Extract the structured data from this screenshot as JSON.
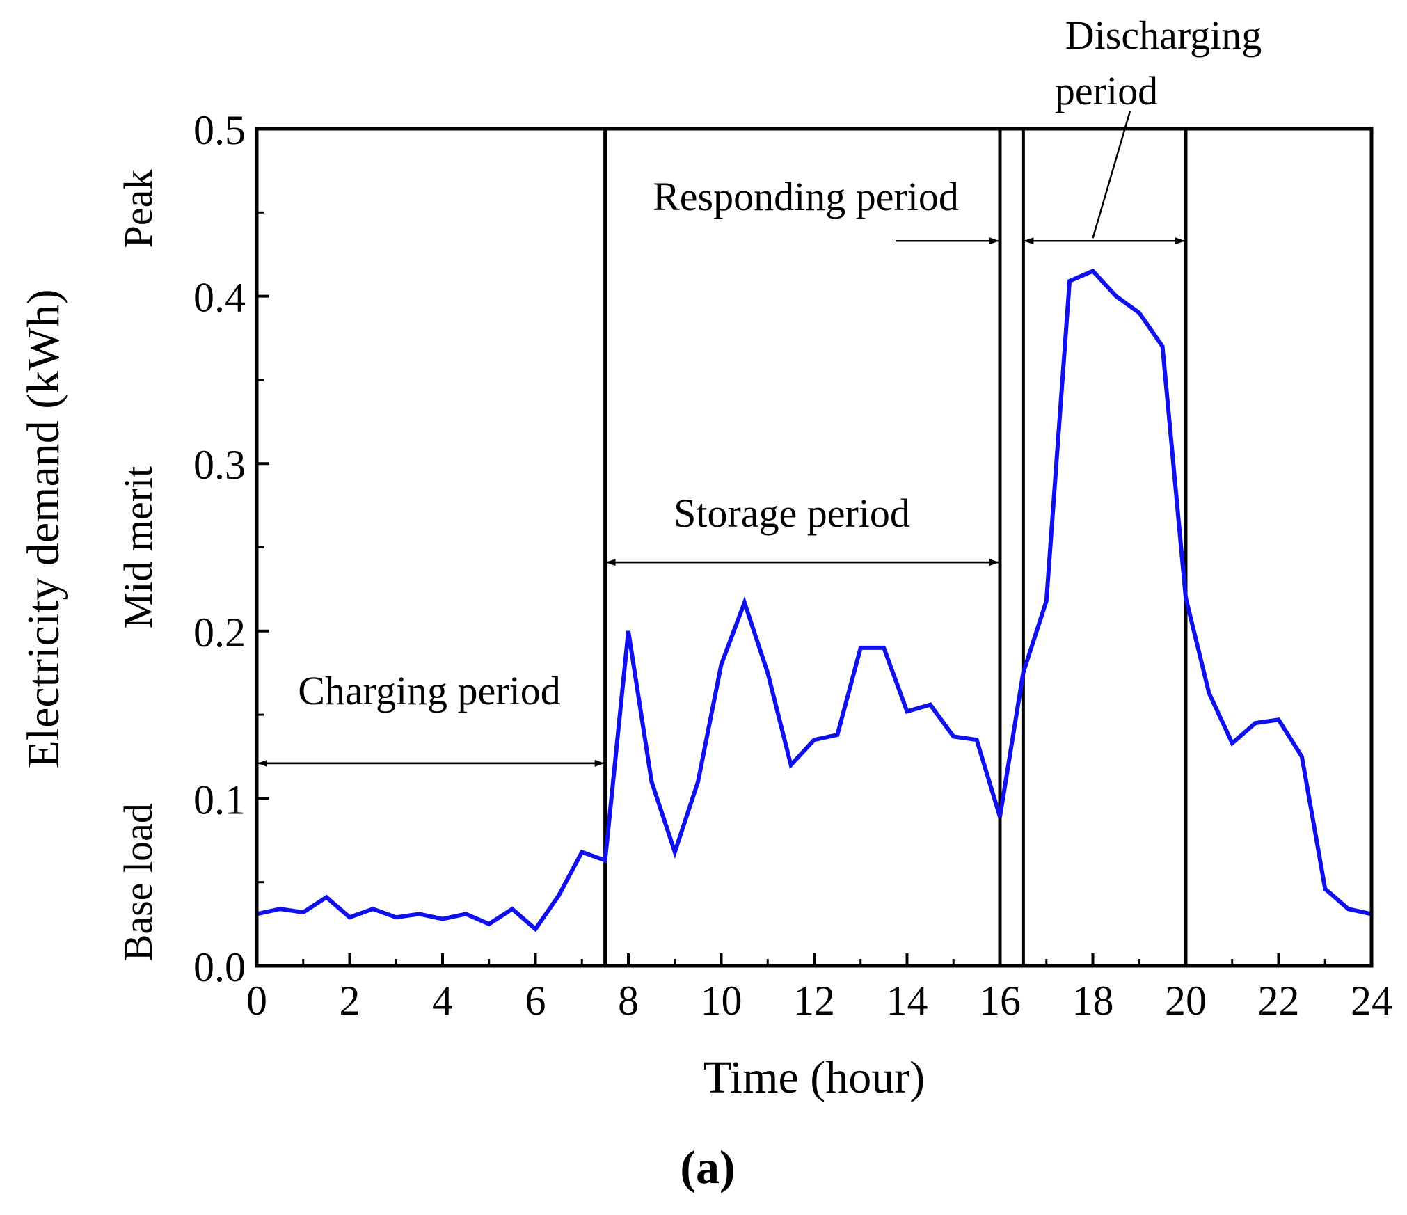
{
  "chart_data": {
    "type": "line",
    "title": "",
    "panel_label": "(a)",
    "xlabel": "Time (hour)",
    "ylabel": "Electricity demand (kWh)",
    "xlim": [
      0,
      24
    ],
    "ylim": [
      0,
      0.5
    ],
    "xticks": [
      "0",
      "2",
      "4",
      "6",
      "8",
      "10",
      "12",
      "14",
      "16",
      "18",
      "20",
      "22",
      "24"
    ],
    "yticks": [
      "0.0",
      "0.1",
      "0.2",
      "0.3",
      "0.4",
      "0.5"
    ],
    "grid": false,
    "y_bands": [
      {
        "label": "Base load",
        "from": 0.0,
        "to": 0.1
      },
      {
        "label": "Mid merit",
        "from": 0.1,
        "to": 0.4
      },
      {
        "label": "Peak",
        "from": 0.4,
        "to": 0.5
      }
    ],
    "vertical_lines_x": [
      7.5,
      16.0,
      16.5,
      20.0
    ],
    "annotations": [
      {
        "name": "charging",
        "label": "Charging period",
        "x_from": 0,
        "x_to": 7.5,
        "y": 0.121
      },
      {
        "name": "storage",
        "label": "Storage period",
        "x_from": 7.5,
        "x_to": 16.0,
        "y": 0.241
      },
      {
        "name": "responding",
        "label": "Responding period",
        "x_from": 16.0,
        "x_to": 16.5,
        "y": 0.433
      },
      {
        "name": "discharging",
        "label_lines": [
          "Discharging",
          "period"
        ],
        "x_from": 16.5,
        "x_to": 20.0,
        "y": 0.433
      }
    ],
    "series": [
      {
        "name": "Electricity demand",
        "color": "#1010ee",
        "x": [
          0,
          0.5,
          1,
          1.5,
          2,
          2.5,
          3,
          3.5,
          4,
          4.5,
          5,
          5.5,
          6,
          6.5,
          7,
          7.5,
          8,
          8.5,
          9,
          9.5,
          10,
          10.5,
          11,
          11.5,
          12,
          12.5,
          13,
          13.5,
          14,
          14.5,
          15,
          15.5,
          16,
          16.5,
          17,
          17.5,
          18,
          18.5,
          19,
          19.5,
          20,
          20.5,
          21,
          21.5,
          22,
          22.5,
          23,
          23.5,
          24
        ],
        "values": [
          0.031,
          0.034,
          0.032,
          0.041,
          0.029,
          0.034,
          0.029,
          0.031,
          0.028,
          0.031,
          0.025,
          0.034,
          0.022,
          0.042,
          0.068,
          0.063,
          0.2,
          0.11,
          0.068,
          0.11,
          0.18,
          0.217,
          0.175,
          0.12,
          0.135,
          0.138,
          0.19,
          0.19,
          0.152,
          0.156,
          0.137,
          0.135,
          0.089,
          0.175,
          0.218,
          0.409,
          0.415,
          0.4,
          0.39,
          0.37,
          0.22,
          0.163,
          0.133,
          0.145,
          0.147,
          0.125,
          0.046,
          0.034,
          0.031
        ]
      }
    ]
  }
}
